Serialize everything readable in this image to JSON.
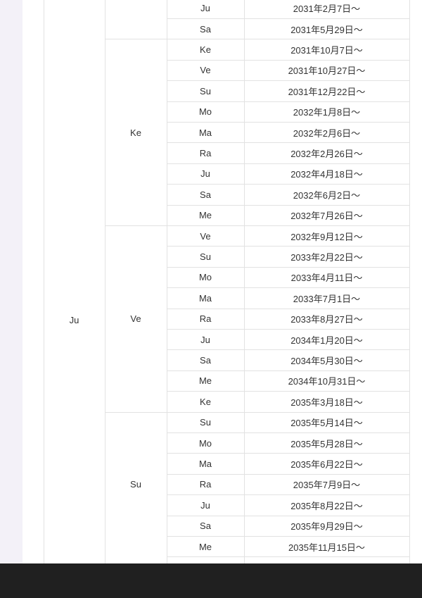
{
  "maha_dasha": "Ju",
  "groups": [
    {
      "antar": "",
      "rows": [
        {
          "pratyantar": "Ju",
          "start": "2031年2月7日〜"
        },
        {
          "pratyantar": "Sa",
          "start": "2031年5月29日〜"
        }
      ]
    },
    {
      "antar": "Ke",
      "rows": [
        {
          "pratyantar": "Ke",
          "start": "2031年10月7日〜"
        },
        {
          "pratyantar": "Ve",
          "start": "2031年10月27日〜"
        },
        {
          "pratyantar": "Su",
          "start": "2031年12月22日〜"
        },
        {
          "pratyantar": "Mo",
          "start": "2032年1月8日〜"
        },
        {
          "pratyantar": "Ma",
          "start": "2032年2月6日〜"
        },
        {
          "pratyantar": "Ra",
          "start": "2032年2月26日〜"
        },
        {
          "pratyantar": "Ju",
          "start": "2032年4月18日〜"
        },
        {
          "pratyantar": "Sa",
          "start": "2032年6月2日〜"
        },
        {
          "pratyantar": "Me",
          "start": "2032年7月26日〜"
        }
      ]
    },
    {
      "antar": "Ve",
      "rows": [
        {
          "pratyantar": "Ve",
          "start": "2032年9月12日〜"
        },
        {
          "pratyantar": "Su",
          "start": "2033年2月22日〜"
        },
        {
          "pratyantar": "Mo",
          "start": "2033年4月11日〜"
        },
        {
          "pratyantar": "Ma",
          "start": "2033年7月1日〜"
        },
        {
          "pratyantar": "Ra",
          "start": "2033年8月27日〜"
        },
        {
          "pratyantar": "Ju",
          "start": "2034年1月20日〜"
        },
        {
          "pratyantar": "Sa",
          "start": "2034年5月30日〜"
        },
        {
          "pratyantar": "Me",
          "start": "2034年10月31日〜"
        },
        {
          "pratyantar": "Ke",
          "start": "2035年3月18日〜"
        }
      ]
    },
    {
      "antar": "Su",
      "rows": [
        {
          "pratyantar": "Su",
          "start": "2035年5月14日〜"
        },
        {
          "pratyantar": "Mo",
          "start": "2035年5月28日〜"
        },
        {
          "pratyantar": "Ma",
          "start": "2035年6月22日〜"
        },
        {
          "pratyantar": "Ra",
          "start": "2035年7月9日〜"
        },
        {
          "pratyantar": "Ju",
          "start": "2035年8月22日〜"
        },
        {
          "pratyantar": "Sa",
          "start": "2035年9月29日〜"
        },
        {
          "pratyantar": "Me",
          "start": "2035年11月15日〜"
        }
      ]
    }
  ]
}
